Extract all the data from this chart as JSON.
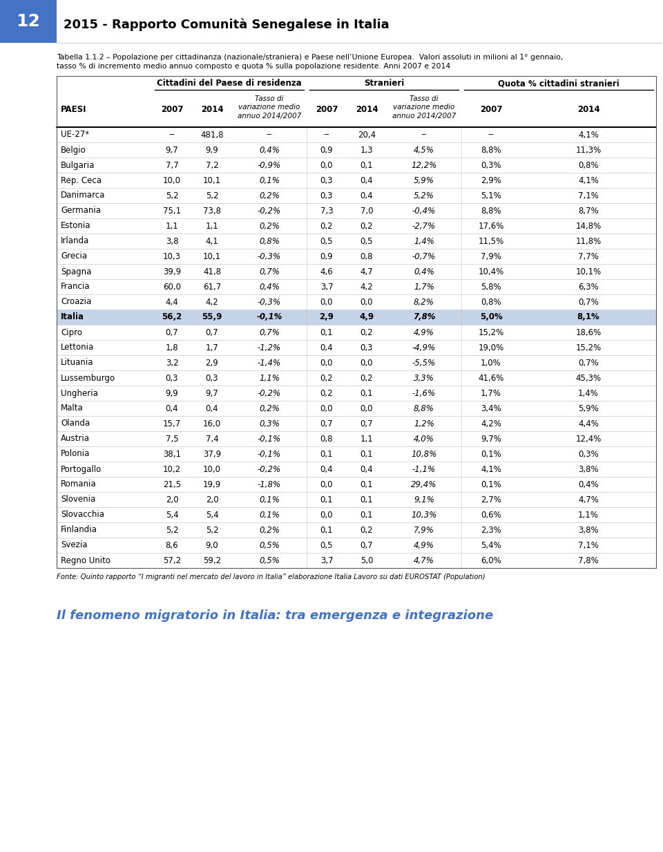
{
  "page_num": "12",
  "header_title": "2015 - Rapporto Comunità Senegalese in Italia",
  "table_caption_line1": "Tabella 1.1.2 – Popolazione per cittadinanza (nazionale/straniera) e Paese nell’Unione Europea.  Valori assoluti in milioni al 1° gennaio,",
  "table_caption_line2": "tasso % di incremento medio annuo composto e quota % sulla popolazione residente. Anni 2007 e 2014",
  "col_group1": "Cittadini del Paese di residenza",
  "col_group2": "Stranieri",
  "col_group3": "Quota % cittadini stranieri",
  "col_header_paese": "PAESI",
  "col_header_2007": "2007",
  "col_header_2014": "2014",
  "col_header_tasso": "Tasso di\nvariazione medio\nannuo 2014/2007",
  "footer_note": "Fonte: Quinto rapporto “I migranti nel mercato del lavoro in Italia” elaborazione Italia Lavoro su dati EUROSTAT (Population)",
  "footer_italic": "Il fenomeno migratorio in Italia: tra emergenza e integrazione",
  "rows": [
    [
      "UE-27*",
      "--",
      "481,8",
      "--",
      "--",
      "20,4",
      "--",
      "--",
      "4,1%"
    ],
    [
      "Belgio",
      "9,7",
      "9,9",
      "0,4%",
      "0,9",
      "1,3",
      "4,5%",
      "8,8%",
      "11,3%"
    ],
    [
      "Bulgaria",
      "7,7",
      "7,2",
      "-0,9%",
      "0,0",
      "0,1",
      "12,2%",
      "0,3%",
      "0,8%"
    ],
    [
      "Rep. Ceca",
      "10,0",
      "10,1",
      "0,1%",
      "0,3",
      "0,4",
      "5,9%",
      "2,9%",
      "4,1%"
    ],
    [
      "Danimarca",
      "5,2",
      "5,2",
      "0,2%",
      "0,3",
      "0,4",
      "5,2%",
      "5,1%",
      "7,1%"
    ],
    [
      "Germania",
      "75,1",
      "73,8",
      "-0,2%",
      "7,3",
      "7,0",
      "-0,4%",
      "8,8%",
      "8,7%"
    ],
    [
      "Estonia",
      "1,1",
      "1,1",
      "0,2%",
      "0,2",
      "0,2",
      "-2,7%",
      "17,6%",
      "14,8%"
    ],
    [
      "Irlanda",
      "3,8",
      "4,1",
      "0,8%",
      "0,5",
      "0,5",
      "1,4%",
      "11,5%",
      "11,8%"
    ],
    [
      "Grecia",
      "10,3",
      "10,1",
      "-0,3%",
      "0,9",
      "0,8",
      "-0,7%",
      "7,9%",
      "7,7%"
    ],
    [
      "Spagna",
      "39,9",
      "41,8",
      "0,7%",
      "4,6",
      "4,7",
      "0,4%",
      "10,4%",
      "10,1%"
    ],
    [
      "Francia",
      "60,0",
      "61,7",
      "0,4%",
      "3,7",
      "4,2",
      "1,7%",
      "5,8%",
      "6,3%"
    ],
    [
      "Croazia",
      "4,4",
      "4,2",
      "-0,3%",
      "0,0",
      "0,0",
      "8,2%",
      "0,8%",
      "0,7%"
    ],
    [
      "Italia",
      "56,2",
      "55,9",
      "-0,1%",
      "2,9",
      "4,9",
      "7,8%",
      "5,0%",
      "8,1%"
    ],
    [
      "Cipro",
      "0,7",
      "0,7",
      "0,7%",
      "0,1",
      "0,2",
      "4,9%",
      "15,2%",
      "18,6%"
    ],
    [
      "Lettonia",
      "1,8",
      "1,7",
      "-1,2%",
      "0,4",
      "0,3",
      "-4,9%",
      "19,0%",
      "15,2%"
    ],
    [
      "Lituania",
      "3,2",
      "2,9",
      "-1,4%",
      "0,0",
      "0,0",
      "-5,5%",
      "1,0%",
      "0,7%"
    ],
    [
      "Lussemburgo",
      "0,3",
      "0,3",
      "1,1%",
      "0,2",
      "0,2",
      "3,3%",
      "41,6%",
      "45,3%"
    ],
    [
      "Ungheria",
      "9,9",
      "9,7",
      "-0,2%",
      "0,2",
      "0,1",
      "-1,6%",
      "1,7%",
      "1,4%"
    ],
    [
      "Malta",
      "0,4",
      "0,4",
      "0,2%",
      "0,0",
      "0,0",
      "8,8%",
      "3,4%",
      "5,9%"
    ],
    [
      "Olanda",
      "15,7",
      "16,0",
      "0,3%",
      "0,7",
      "0,7",
      "1,2%",
      "4,2%",
      "4,4%"
    ],
    [
      "Austria",
      "7,5",
      "7,4",
      "-0,1%",
      "0,8",
      "1,1",
      "4,0%",
      "9,7%",
      "12,4%"
    ],
    [
      "Polonia",
      "38,1",
      "37,9",
      "-0,1%",
      "0,1",
      "0,1",
      "10,8%",
      "0,1%",
      "0,3%"
    ],
    [
      "Portogallo",
      "10,2",
      "10,0",
      "-0,2%",
      "0,4",
      "0,4",
      "-1,1%",
      "4,1%",
      "3,8%"
    ],
    [
      "Romania",
      "21,5",
      "19,9",
      "-1,8%",
      "0,0",
      "0,1",
      "29,4%",
      "0,1%",
      "0,4%"
    ],
    [
      "Slovenia",
      "2,0",
      "2,0",
      "0,1%",
      "0,1",
      "0,1",
      "9,1%",
      "2,7%",
      "4,7%"
    ],
    [
      "Slovacchia",
      "5,4",
      "5,4",
      "0,1%",
      "0,0",
      "0,1",
      "10,3%",
      "0,6%",
      "1,1%"
    ],
    [
      "Finlandia",
      "5,2",
      "5,2",
      "0,2%",
      "0,1",
      "0,2",
      "7,9%",
      "2,3%",
      "3,8%"
    ],
    [
      "Svezia",
      "8,6",
      "9,0",
      "0,5%",
      "0,5",
      "0,7",
      "4,9%",
      "5,4%",
      "7,1%"
    ],
    [
      "Regno Unito",
      "57,2",
      "59,2",
      "0,5%",
      "3,7",
      "5,0",
      "4,7%",
      "6,0%",
      "7,8%"
    ]
  ],
  "highlight_row": "Italia",
  "highlight_color": "#c5d3e8",
  "header_bg": "#4472c4",
  "header_text": "#ffffff",
  "page_num_bg": "#4472c4",
  "page_num_text": "#ffffff",
  "border_color": "#000000",
  "row_bg_normal": "#ffffff",
  "row_text_color": "#000000"
}
